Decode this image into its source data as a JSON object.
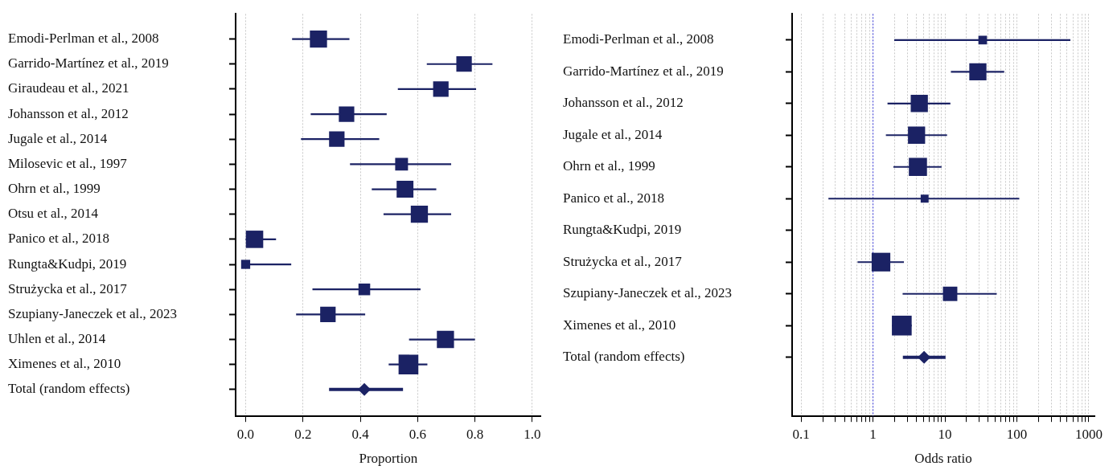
{
  "chart_data": [
    {
      "type": "bubble",
      "orientation": "horizontal",
      "xlabel": "Proportion",
      "marker": "square",
      "grid": "x",
      "legend": false,
      "categories": [
        "Emodi-Perlman et al., 2008",
        "Garrido-Martínez et al., 2019",
        "Giraudeau et al., 2021",
        "Johansson et al., 2012",
        "Jugale et al., 2014",
        "Milosevic et al., 1997",
        "Ohrn et al., 1999",
        "Otsu et al., 2014",
        "Panico et al., 2018",
        "Rungta&Kudpi, 2019",
        "Strużycka et al., 2017",
        "Szupiany-Janeczek et al., 2023",
        "Uhlen et al., 2014",
        "Ximenes et al., 2010",
        "Total (random effects)"
      ],
      "xlim": [
        -0.035,
        1.03
      ],
      "xticks": [
        {
          "value": 0,
          "label": "0.0"
        },
        0.2,
        0.4,
        0.6,
        0.8,
        {
          "value": 1,
          "label": "1.0"
        }
      ],
      "series": [
        {
          "type": "bubble",
          "color": "#1b2264",
          "values": [
            0.254,
            0.762,
            0.681,
            0.352,
            0.318,
            0.544,
            0.556,
            0.606,
            0.031,
            0.0,
            0.414,
            0.287,
            0.697,
            0.568,
            null
          ],
          "sizes": [
            0.75,
            0.61,
            0.61,
            0.61,
            0.61,
            0.42,
            0.72,
            0.75,
            0.77,
            0.21,
            0.35,
            0.61,
            0.75,
            1,
            null
          ],
          "errors": [
            [
              0.162,
              0.362
            ],
            [
              0.632,
              0.861
            ],
            [
              0.531,
              0.804
            ],
            [
              0.227,
              0.492
            ],
            [
              0.193,
              0.466
            ],
            [
              0.364,
              0.717
            ],
            [
              0.44,
              0.665
            ],
            [
              0.481,
              0.717
            ],
            [
              0.0,
              0.106
            ],
            [
              0.0,
              0.159
            ],
            [
              0.233,
              0.61
            ],
            [
              0.176,
              0.417
            ],
            [
              0.57,
              0.8
            ],
            [
              0.499,
              0.634
            ],
            null
          ]
        },
        {
          "type": "scatter",
          "marker": "diamond",
          "color": "#1b2264",
          "values": [
            null,
            null,
            null,
            null,
            null,
            null,
            null,
            null,
            null,
            null,
            null,
            null,
            null,
            null,
            0.414
          ],
          "errors": [
            null,
            null,
            null,
            null,
            null,
            null,
            null,
            null,
            null,
            null,
            null,
            null,
            null,
            null,
            [
              0.291,
              0.549
            ]
          ]
        }
      ]
    },
    {
      "type": "bubble",
      "orientation": "horizontal",
      "xlabel": "Odds ratio",
      "marker": "square",
      "grid": "x",
      "legend": false,
      "log": "x",
      "categories": [
        "Emodi-Perlman et al., 2008",
        "Garrido-Martínez et al., 2019",
        "Johansson et al., 2012",
        "Jugale et al., 2014",
        "Ohrn et al., 1999",
        "Panico et al., 2018",
        "Rungta&Kudpi, 2019",
        "Strużycka et al., 2017",
        "Szupiany-Janeczek et al., 2023",
        "Ximenes et al., 2010",
        "Total (random effects)"
      ],
      "xlim": [
        0.075,
        1200
      ],
      "xticks": [
        0.1,
        {
          "value": 0.2,
          "label": null
        },
        {
          "value": 0.3,
          "label": null
        },
        {
          "value": 0.4,
          "label": null
        },
        {
          "value": 0.5,
          "label": null
        },
        {
          "value": 0.6,
          "label": null
        },
        {
          "value": 0.7,
          "label": null
        },
        {
          "value": 0.8,
          "label": null
        },
        {
          "value": 0.9,
          "label": null
        },
        1,
        {
          "value": 2,
          "label": null
        },
        {
          "value": 3,
          "label": null
        },
        {
          "value": 4,
          "label": null
        },
        {
          "value": 5,
          "label": null
        },
        {
          "value": 6,
          "label": null
        },
        {
          "value": 7,
          "label": null
        },
        {
          "value": 8,
          "label": null
        },
        {
          "value": 9,
          "label": null
        },
        10,
        {
          "value": 20,
          "label": null
        },
        {
          "value": 30,
          "label": null
        },
        {
          "value": 40,
          "label": null
        },
        {
          "value": 50,
          "label": null
        },
        {
          "value": 60,
          "label": null
        },
        {
          "value": 70,
          "label": null
        },
        {
          "value": 80,
          "label": null
        },
        {
          "value": 90,
          "label": null
        },
        100,
        {
          "value": 200,
          "label": null
        },
        {
          "value": 300,
          "label": null
        },
        {
          "value": 400,
          "label": null
        },
        {
          "value": 500,
          "label": null
        },
        {
          "value": 600,
          "label": null
        },
        {
          "value": 700,
          "label": null
        },
        {
          "value": 800,
          "label": null
        },
        {
          "value": 900,
          "label": null
        },
        1000
      ],
      "ref_lines": [
        {
          "axis": "x",
          "value": 1,
          "color": "#3a3adf",
          "line_style": "dotted"
        }
      ],
      "series": [
        {
          "type": "bubble",
          "color": "#1b2264",
          "values": [
            33.5,
            28.7,
            4.4,
            4.03,
            4.21,
            5.22,
            null,
            1.29,
            11.8,
            2.51,
            null
          ],
          "sizes": [
            0.19,
            0.75,
            0.75,
            0.75,
            0.84,
            0.16,
            null,
            0.89,
            0.53,
            1,
            null
          ],
          "errors": [
            [
              1.97,
              555
            ],
            [
              12.1,
              66.7
            ],
            [
              1.59,
              11.9
            ],
            [
              1.51,
              10.7
            ],
            [
              1.92,
              8.98
            ],
            [
              0.24,
              108
            ],
            null,
            [
              0.61,
              2.69
            ],
            [
              2.58,
              52.5
            ],
            [
              1.83,
              3.45
            ],
            null
          ]
        },
        {
          "type": "scatter",
          "marker": "diamond",
          "color": "#1b2264",
          "values": [
            null,
            null,
            null,
            null,
            null,
            null,
            null,
            null,
            null,
            null,
            5.13
          ],
          "errors": [
            null,
            null,
            null,
            null,
            null,
            null,
            null,
            null,
            null,
            null,
            [
              2.6,
              10.2
            ]
          ]
        }
      ]
    }
  ]
}
